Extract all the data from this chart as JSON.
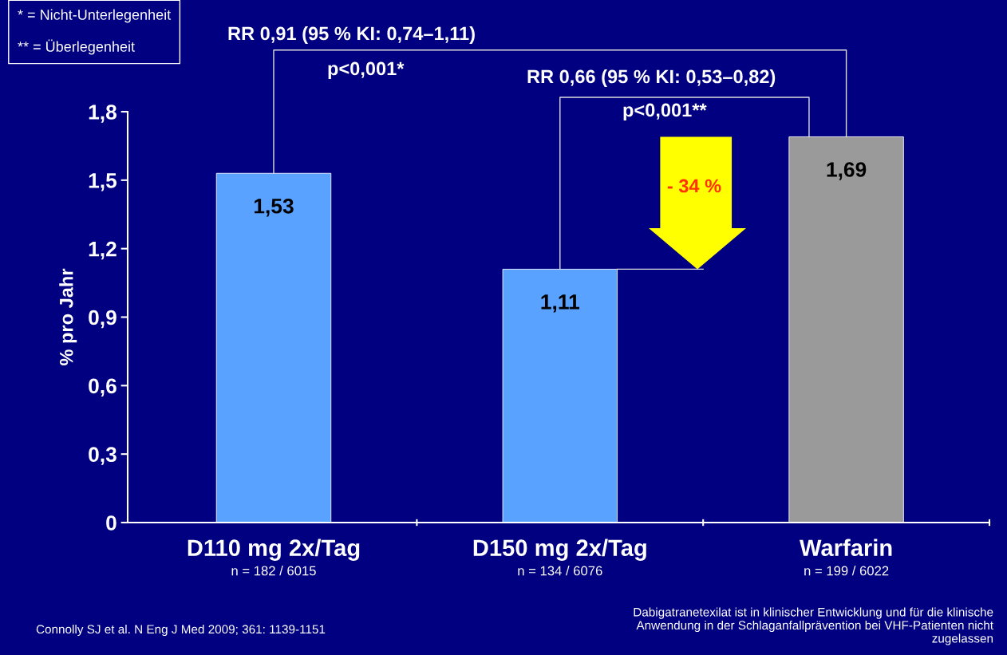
{
  "chart_data": {
    "type": "bar",
    "ylabel": "% pro Jahr",
    "categories": [
      "D110 mg 2x/Tag\nn = 182 / 6015",
      "D150 mg 2x/Tag\nn = 134 / 6076",
      "Warfarin\nn = 199 / 6022"
    ],
    "values": [
      1.53,
      1.11,
      1.69
    ],
    "colors": [
      "#5aa2ff",
      "#5aa2ff",
      "#9a9a9a"
    ],
    "ylim": [
      0,
      1.8
    ],
    "yticks": [
      0,
      {
        "value": 0.3,
        "label": "0,3"
      },
      {
        "value": 0.6,
        "label": "0,6"
      },
      {
        "value": 0.9,
        "label": "0,9"
      },
      {
        "value": 1.2,
        "label": "1,2"
      },
      {
        "value": 1.5,
        "label": "1,5"
      },
      {
        "value": 1.8,
        "label": "1,8"
      }
    ],
    "data_labels": true,
    "value_labels": [
      "1,53",
      "1,11",
      "1,69"
    ],
    "grid": false,
    "legend": false,
    "annotations": [
      "* = Nicht-Unterlegenheit\n** = Überlegenheit",
      "RR 0,91 (95 % KI: 0,74–1,11)",
      "p<0,001*",
      "RR 0,66 (95 % KI: 0,53–0,82)",
      "p<0,001**",
      "- 34 %",
      "Connolly SJ et al. N Eng J Med 2009; 361: 1139-1151",
      "Dabigatranetexilat ist in klinischer Entwicklung und für die klinische\nAnwendung in der Schlaganfallprävention bei VHF-Patienten nicht\nzugelassen"
    ]
  }
}
